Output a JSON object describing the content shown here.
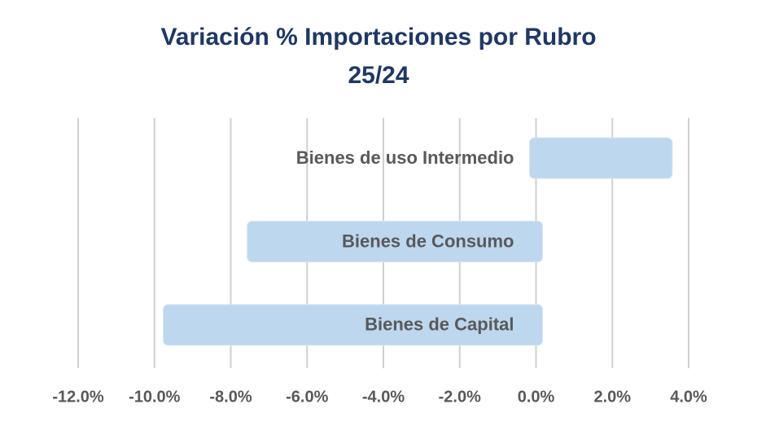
{
  "chart_data": {
    "type": "bar",
    "orientation": "horizontal",
    "title": [
      "Variación % Importaciones por Rubro",
      "25/24"
    ],
    "categories": [
      "Bienes de uso Intermedio",
      "Bienes de Consumo",
      "Bienes de Capital"
    ],
    "values": [
      3.4,
      -7.4,
      -9.6
    ],
    "color": "#bdd7ee",
    "xlim": [
      -12,
      4
    ],
    "xticks": [
      {
        "value": -12,
        "label": "-12.0%"
      },
      {
        "value": -10,
        "label": "-10.0%"
      },
      {
        "value": -8,
        "label": "-8.0%"
      },
      {
        "value": -6,
        "label": "-6.0%"
      },
      {
        "value": -4,
        "label": "-4.0%"
      },
      {
        "value": -2,
        "label": "-2.0%"
      },
      {
        "value": 0,
        "label": "0.0%"
      },
      {
        "value": 2,
        "label": "2.0%"
      },
      {
        "value": 4,
        "label": "4.0%"
      }
    ],
    "grid": true
  }
}
